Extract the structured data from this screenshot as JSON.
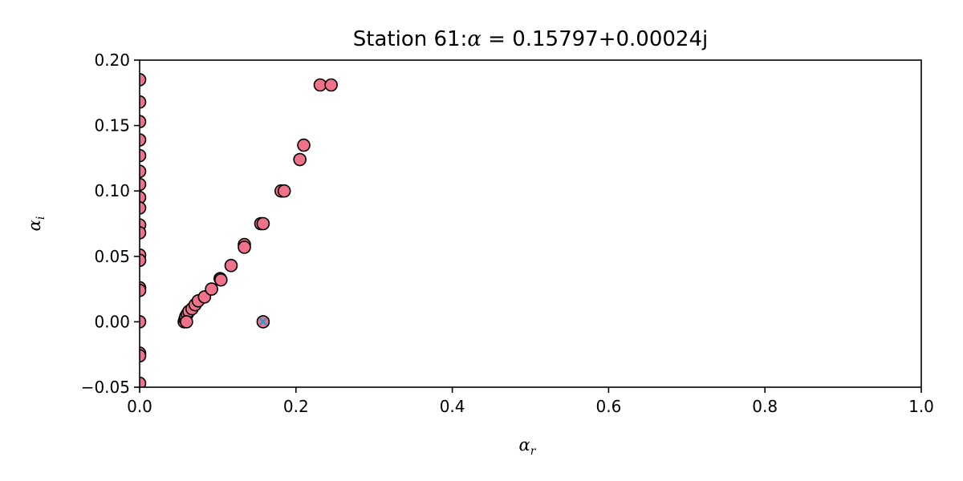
{
  "chart_data": {
    "type": "scatter",
    "title_prefix": "Station 61:",
    "title_alpha": "α",
    "title_eq": " = 0.15797+0.00024j",
    "xlabel_base": "α",
    "xlabel_sub": "r",
    "ylabel_base": "α",
    "ylabel_sub": "i",
    "xlim": [
      0.0,
      1.0
    ],
    "ylim": [
      -0.05,
      0.2
    ],
    "xticks": [
      0.0,
      0.2,
      0.4,
      0.6,
      0.8,
      1.0
    ],
    "xtick_labels": [
      "0.0",
      "0.2",
      "0.4",
      "0.6",
      "0.8",
      "1.0"
    ],
    "yticks": [
      -0.05,
      0.0,
      0.05,
      0.1,
      0.15,
      0.2
    ],
    "ytick_labels": [
      "−0.05",
      "0.00",
      "0.05",
      "0.10",
      "0.15",
      "0.20"
    ],
    "grid": false,
    "colors": {
      "points": "#f0728a",
      "edge": "#000000",
      "marker": "#1a9fd0"
    },
    "points": [
      {
        "x": 0.0,
        "y": 0.185
      },
      {
        "x": 0.0,
        "y": 0.168
      },
      {
        "x": 0.0,
        "y": 0.153
      },
      {
        "x": 0.0,
        "y": 0.139
      },
      {
        "x": 0.0,
        "y": 0.127
      },
      {
        "x": 0.0,
        "y": 0.115
      },
      {
        "x": 0.0,
        "y": 0.105
      },
      {
        "x": 0.0,
        "y": 0.095
      },
      {
        "x": 0.0,
        "y": 0.087
      },
      {
        "x": 0.0,
        "y": 0.074
      },
      {
        "x": 0.0,
        "y": 0.068
      },
      {
        "x": 0.0,
        "y": 0.051
      },
      {
        "x": 0.0,
        "y": 0.047
      },
      {
        "x": 0.0,
        "y": 0.026
      },
      {
        "x": 0.0,
        "y": 0.024
      },
      {
        "x": 0.0,
        "y": 0.0
      },
      {
        "x": 0.0,
        "y": -0.024
      },
      {
        "x": 0.0,
        "y": -0.026
      },
      {
        "x": 0.0,
        "y": -0.047
      },
      {
        "x": 0.057,
        "y": 0.0
      },
      {
        "x": 0.058,
        "y": 0.002
      },
      {
        "x": 0.059,
        "y": 0.004
      },
      {
        "x": 0.061,
        "y": 0.006
      },
      {
        "x": 0.063,
        "y": 0.008
      },
      {
        "x": 0.067,
        "y": 0.01
      },
      {
        "x": 0.071,
        "y": 0.013
      },
      {
        "x": 0.075,
        "y": 0.016
      },
      {
        "x": 0.083,
        "y": 0.019
      },
      {
        "x": 0.092,
        "y": 0.025
      },
      {
        "x": 0.103,
        "y": 0.033
      },
      {
        "x": 0.104,
        "y": 0.032
      },
      {
        "x": 0.117,
        "y": 0.043
      },
      {
        "x": 0.134,
        "y": 0.059
      },
      {
        "x": 0.134,
        "y": 0.057
      },
      {
        "x": 0.155,
        "y": 0.075
      },
      {
        "x": 0.158,
        "y": 0.075
      },
      {
        "x": 0.181,
        "y": 0.1
      },
      {
        "x": 0.185,
        "y": 0.1
      },
      {
        "x": 0.205,
        "y": 0.124
      },
      {
        "x": 0.21,
        "y": 0.135
      },
      {
        "x": 0.231,
        "y": 0.181
      },
      {
        "x": 0.245,
        "y": 0.181
      },
      {
        "x": 0.06,
        "y": 0.0
      },
      {
        "x": 0.158,
        "y": 0.0
      }
    ],
    "highlight": {
      "x": 0.15797,
      "y": 0.00024
    }
  }
}
